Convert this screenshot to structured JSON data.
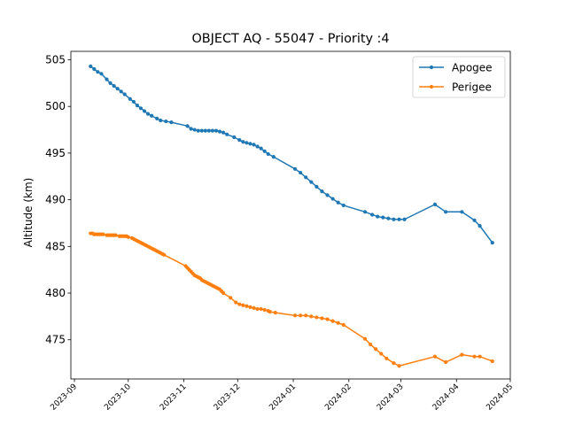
{
  "chart_data": {
    "type": "line",
    "title": "OBJECT AQ - 55047 - Priority :4",
    "xlabel": "",
    "ylabel": "Altitude (km)",
    "x_ticks": [
      "2023-09",
      "2023-10",
      "2023-11",
      "2023-12",
      "2024-01",
      "2024-02",
      "2024-03",
      "2024-04",
      "2024-05"
    ],
    "xlim": [
      "2023-08-30",
      "2024-05-01"
    ],
    "y_ticks": [
      475,
      480,
      485,
      490,
      495,
      500,
      505
    ],
    "ylim": [
      470.8,
      505.9
    ],
    "grid": false,
    "legend_position": "top-right",
    "series": [
      {
        "name": "Apogee",
        "color": "#1f77b4",
        "points": [
          [
            "2023-09-10",
            504.3
          ],
          [
            "2023-09-12",
            504.0
          ],
          [
            "2023-09-14",
            503.7
          ],
          [
            "2023-09-16",
            503.5
          ],
          [
            "2023-09-19",
            502.9
          ],
          [
            "2023-09-21",
            502.5
          ],
          [
            "2023-09-23",
            502.2
          ],
          [
            "2023-09-25",
            501.9
          ],
          [
            "2023-09-27",
            501.6
          ],
          [
            "2023-09-29",
            501.3
          ],
          [
            "2023-10-02",
            500.8
          ],
          [
            "2023-10-04",
            500.5
          ],
          [
            "2023-10-06",
            500.1
          ],
          [
            "2023-10-08",
            499.8
          ],
          [
            "2023-10-10",
            499.5
          ],
          [
            "2023-10-12",
            499.2
          ],
          [
            "2023-10-14",
            499.0
          ],
          [
            "2023-10-17",
            498.7
          ],
          [
            "2023-10-19",
            498.5
          ],
          [
            "2023-10-22",
            498.4
          ],
          [
            "2023-10-25",
            498.3
          ],
          [
            "2023-11-03",
            497.9
          ],
          [
            "2023-11-05",
            497.6
          ],
          [
            "2023-11-07",
            497.5
          ],
          [
            "2023-11-09",
            497.4
          ],
          [
            "2023-11-11",
            497.4
          ],
          [
            "2023-11-13",
            497.4
          ],
          [
            "2023-11-15",
            497.4
          ],
          [
            "2023-11-17",
            497.4
          ],
          [
            "2023-11-19",
            497.4
          ],
          [
            "2023-11-21",
            497.3
          ],
          [
            "2023-11-23",
            497.2
          ],
          [
            "2023-11-25",
            497.0
          ],
          [
            "2023-11-29",
            496.7
          ],
          [
            "2023-12-02",
            496.4
          ],
          [
            "2023-12-04",
            496.2
          ],
          [
            "2023-12-06",
            496.1
          ],
          [
            "2023-12-08",
            496.0
          ],
          [
            "2023-12-10",
            495.9
          ],
          [
            "2023-12-12",
            495.7
          ],
          [
            "2023-12-14",
            495.5
          ],
          [
            "2023-12-16",
            495.2
          ],
          [
            "2023-12-18",
            494.9
          ],
          [
            "2023-12-21",
            494.6
          ],
          [
            "2024-01-02",
            493.3
          ],
          [
            "2024-01-05",
            492.9
          ],
          [
            "2024-01-08",
            492.4
          ],
          [
            "2024-01-11",
            491.9
          ],
          [
            "2024-01-14",
            491.4
          ],
          [
            "2024-01-17",
            490.9
          ],
          [
            "2024-01-20",
            490.5
          ],
          [
            "2024-01-23",
            490.1
          ],
          [
            "2024-01-26",
            489.7
          ],
          [
            "2024-01-29",
            489.4
          ],
          [
            "2024-02-10",
            488.7
          ],
          [
            "2024-02-14",
            488.4
          ],
          [
            "2024-02-17",
            488.2
          ],
          [
            "2024-02-20",
            488.1
          ],
          [
            "2024-02-23",
            488.0
          ],
          [
            "2024-02-26",
            487.9
          ],
          [
            "2024-02-29",
            487.9
          ],
          [
            "2024-03-03",
            487.9
          ],
          [
            "2024-03-20",
            489.5
          ],
          [
            "2024-03-26",
            488.7
          ],
          [
            "2024-04-04",
            488.7
          ],
          [
            "2024-04-11",
            487.8
          ],
          [
            "2024-04-14",
            487.2
          ],
          [
            "2024-04-21",
            485.4
          ]
        ]
      },
      {
        "name": "Perigee",
        "color": "#ff7f0e",
        "points": [
          [
            "2023-09-10",
            486.4
          ],
          [
            "2023-09-11",
            486.4
          ],
          [
            "2023-09-12",
            486.3
          ],
          [
            "2023-09-13",
            486.3
          ],
          [
            "2023-09-14",
            486.3
          ],
          [
            "2023-09-15",
            486.3
          ],
          [
            "2023-09-16",
            486.3
          ],
          [
            "2023-09-17",
            486.3
          ],
          [
            "2023-09-19",
            486.2
          ],
          [
            "2023-09-20",
            486.2
          ],
          [
            "2023-09-21",
            486.2
          ],
          [
            "2023-09-22",
            486.2
          ],
          [
            "2023-09-23",
            486.2
          ],
          [
            "2023-09-24",
            486.2
          ],
          [
            "2023-09-26",
            486.1
          ],
          [
            "2023-09-27",
            486.1
          ],
          [
            "2023-09-28",
            486.1
          ],
          [
            "2023-09-29",
            486.1
          ],
          [
            "2023-09-30",
            486.1
          ],
          [
            "2023-10-01",
            486.0
          ],
          [
            "2023-10-03",
            485.9
          ],
          [
            "2023-10-04",
            485.8
          ],
          [
            "2023-10-05",
            485.7
          ],
          [
            "2023-10-06",
            485.6
          ],
          [
            "2023-10-07",
            485.5
          ],
          [
            "2023-10-08",
            485.4
          ],
          [
            "2023-10-09",
            485.3
          ],
          [
            "2023-10-10",
            485.2
          ],
          [
            "2023-10-11",
            485.1
          ],
          [
            "2023-10-12",
            485.0
          ],
          [
            "2023-10-13",
            484.9
          ],
          [
            "2023-10-14",
            484.8
          ],
          [
            "2023-10-15",
            484.7
          ],
          [
            "2023-10-16",
            484.6
          ],
          [
            "2023-10-17",
            484.5
          ],
          [
            "2023-10-18",
            484.4
          ],
          [
            "2023-10-19",
            484.3
          ],
          [
            "2023-10-20",
            484.2
          ],
          [
            "2023-10-21",
            484.1
          ],
          [
            "2023-11-02",
            482.9
          ],
          [
            "2023-11-03",
            482.7
          ],
          [
            "2023-11-04",
            482.5
          ],
          [
            "2023-11-05",
            482.3
          ],
          [
            "2023-11-06",
            482.1
          ],
          [
            "2023-11-07",
            481.9
          ],
          [
            "2023-11-08",
            481.8
          ],
          [
            "2023-11-09",
            481.7
          ],
          [
            "2023-11-10",
            481.6
          ],
          [
            "2023-11-11",
            481.4
          ],
          [
            "2023-11-12",
            481.3
          ],
          [
            "2023-11-13",
            481.2
          ],
          [
            "2023-11-14",
            481.1
          ],
          [
            "2023-11-15",
            481.0
          ],
          [
            "2023-11-16",
            480.9
          ],
          [
            "2023-11-17",
            480.8
          ],
          [
            "2023-11-18",
            480.7
          ],
          [
            "2023-11-19",
            480.6
          ],
          [
            "2023-11-20",
            480.5
          ],
          [
            "2023-11-21",
            480.4
          ],
          [
            "2023-11-22",
            480.2
          ],
          [
            "2023-11-23",
            480.0
          ],
          [
            "2023-11-27",
            479.5
          ],
          [
            "2023-11-30",
            479.0
          ],
          [
            "2023-12-02",
            478.8
          ],
          [
            "2023-12-04",
            478.7
          ],
          [
            "2023-12-06",
            478.6
          ],
          [
            "2023-12-08",
            478.5
          ],
          [
            "2023-12-10",
            478.4
          ],
          [
            "2023-12-12",
            478.3
          ],
          [
            "2023-12-14",
            478.3
          ],
          [
            "2023-12-16",
            478.2
          ],
          [
            "2023-12-18",
            478.1
          ],
          [
            "2023-12-19",
            478.0
          ],
          [
            "2023-12-22",
            477.9
          ],
          [
            "2024-01-02",
            477.6
          ],
          [
            "2024-01-05",
            477.6
          ],
          [
            "2024-01-08",
            477.6
          ],
          [
            "2024-01-11",
            477.5
          ],
          [
            "2024-01-14",
            477.4
          ],
          [
            "2024-01-17",
            477.3
          ],
          [
            "2024-01-20",
            477.2
          ],
          [
            "2024-01-23",
            477.0
          ],
          [
            "2024-01-26",
            476.8
          ],
          [
            "2024-01-29",
            476.6
          ],
          [
            "2024-02-10",
            475.1
          ],
          [
            "2024-02-13",
            474.5
          ],
          [
            "2024-02-16",
            474.0
          ],
          [
            "2024-02-19",
            473.5
          ],
          [
            "2024-02-22",
            473.0
          ],
          [
            "2024-02-26",
            472.5
          ],
          [
            "2024-02-29",
            472.2
          ],
          [
            "2024-03-20",
            473.2
          ],
          [
            "2024-03-26",
            472.6
          ],
          [
            "2024-04-04",
            473.4
          ],
          [
            "2024-04-11",
            473.2
          ],
          [
            "2024-04-14",
            473.2
          ],
          [
            "2024-04-21",
            472.7
          ]
        ]
      }
    ]
  }
}
